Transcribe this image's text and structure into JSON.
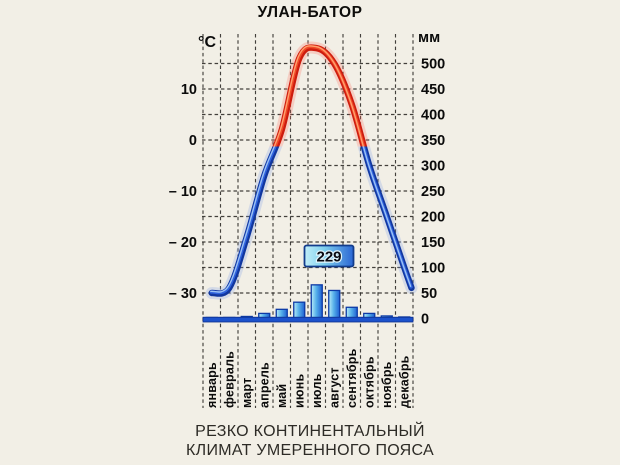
{
  "title": "УЛАН-БАТОР",
  "caption": {
    "line1": "РЕЗКО КОНТИНЕНТАЛЬНЫЙ",
    "line2": "КЛИМАТ УМЕРЕННОГО ПОЯСА"
  },
  "axes": {
    "left_unit": "°C",
    "right_unit": "мм",
    "left_ticks": [
      {
        "value": 10,
        "label": "10"
      },
      {
        "value": 0,
        "label": "0"
      },
      {
        "value": -10,
        "label": "– 10"
      },
      {
        "value": -20,
        "label": "– 20"
      },
      {
        "value": -30,
        "label": "– 30"
      }
    ],
    "right_ticks": [
      {
        "value": 500,
        "label": "500"
      },
      {
        "value": 450,
        "label": "450"
      },
      {
        "value": 400,
        "label": "400"
      },
      {
        "value": 350,
        "label": "350"
      },
      {
        "value": 300,
        "label": "300"
      },
      {
        "value": 250,
        "label": "250"
      },
      {
        "value": 200,
        "label": "200"
      },
      {
        "value": 150,
        "label": "150"
      },
      {
        "value": 100,
        "label": "100"
      },
      {
        "value": 50,
        "label": "50"
      },
      {
        "value": 0,
        "label": "0"
      }
    ]
  },
  "months": [
    "январь",
    "февраль",
    "март",
    "апрель",
    "май",
    "июнь",
    "июль",
    "август",
    "сентябрь",
    "октябрь",
    "ноябрь",
    "декабрь"
  ],
  "annual_precipitation_label": "229",
  "chart_data": [
    {
      "type": "line",
      "name": "air-temperature",
      "title": "УЛАН-БАТОР",
      "categories": [
        "январь",
        "февраль",
        "март",
        "апрель",
        "май",
        "июнь",
        "июль",
        "август",
        "сентябрь",
        "октябрь",
        "ноябрь",
        "декабрь"
      ],
      "values": [
        -30,
        -29,
        -19,
        -7,
        2,
        16,
        18,
        15,
        7,
        -5,
        -15,
        -25
      ],
      "ylabel": "°C",
      "ylim": [
        -35,
        20
      ],
      "grid": true,
      "notes": "curve drawn red above 0 °C, blue below 0 °C"
    },
    {
      "type": "bar",
      "name": "precipitation",
      "categories": [
        "январь",
        "февраль",
        "март",
        "апрель",
        "май",
        "июнь",
        "июль",
        "август",
        "сентябрь",
        "октябрь",
        "ноябрь",
        "декабрь"
      ],
      "values": [
        2,
        2,
        4,
        10,
        18,
        32,
        66,
        55,
        22,
        10,
        5,
        3
      ],
      "ylabel": "мм",
      "ylim": [
        0,
        510
      ],
      "grid": true,
      "annual_total": "229"
    }
  ],
  "colors": {
    "background": "#f2efe6",
    "grid": "#2f2d29",
    "text": "#0b0b0b",
    "temp_warm_base": "#cd1c0e",
    "temp_warm_mid": "#f04a28",
    "temp_warm_highlight": "#ffa06e",
    "temp_warm_glow": "#ff6a5a",
    "temp_cold_base": "#11379f",
    "temp_cold_mid": "#2f62dd",
    "temp_cold_highlight": "#9cc2f4",
    "temp_cold_glow": "#7d9ce6",
    "bar_light": "#b9ecf8",
    "bar_mid": "#57b1ea",
    "bar_dark": "#1c5ed2",
    "bar_outline": "#0d3aa6",
    "baseline": "#1c52cc",
    "badge_border": "#123c8c",
    "badge_text": "#0a0a12"
  }
}
